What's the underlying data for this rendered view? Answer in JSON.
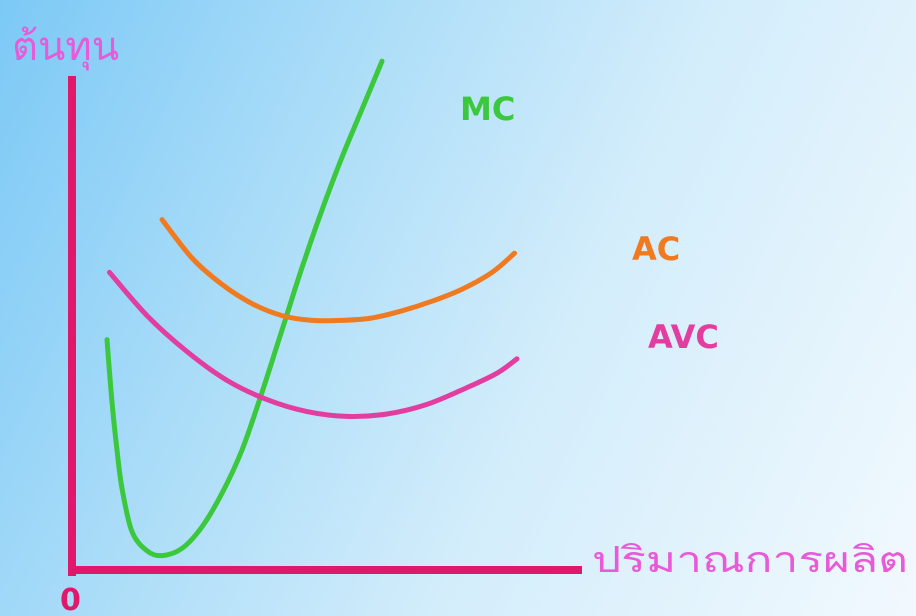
{
  "chart_data": {
    "type": "line",
    "title": "",
    "ylabel": "ต้นทุน",
    "xlabel": "ปริมาณการผลิต",
    "origin_label": "0",
    "xlim": [
      0,
      10
    ],
    "ylim": [
      0,
      10
    ],
    "grid": false,
    "legend": "none",
    "series": [
      {
        "name": "MC",
        "color": "#3cc83c",
        "x": [
          0.7,
          0.8,
          0.9,
          1.0,
          1.2,
          1.5,
          1.8,
          2.2,
          2.6,
          3.0,
          3.4,
          3.8,
          4.2,
          4.6,
          5.0,
          5.4,
          5.8,
          6.2
        ],
        "y": [
          4.8,
          3.5,
          2.5,
          1.7,
          0.8,
          0.4,
          0.3,
          0.45,
          0.9,
          1.6,
          2.5,
          3.7,
          5.0,
          6.3,
          7.5,
          8.6,
          9.6,
          10.6
        ]
      },
      {
        "name": "AC",
        "color": "#f07a20",
        "x": [
          1.8,
          2.4,
          3.0,
          3.6,
          4.2,
          4.8,
          5.4,
          6.0,
          6.6,
          7.2,
          7.8,
          8.4,
          8.85
        ],
        "y": [
          7.3,
          6.5,
          5.95,
          5.55,
          5.3,
          5.2,
          5.2,
          5.25,
          5.4,
          5.6,
          5.85,
          6.2,
          6.6
        ]
      },
      {
        "name": "AVC",
        "color": "#e23ea0",
        "x": [
          0.75,
          1.5,
          2.3,
          3.1,
          3.9,
          4.7,
          5.5,
          6.3,
          7.1,
          7.9,
          8.5,
          8.9
        ],
        "y": [
          6.2,
          5.3,
          4.55,
          3.95,
          3.55,
          3.3,
          3.2,
          3.25,
          3.45,
          3.8,
          4.1,
          4.4
        ]
      }
    ],
    "axis_color": "#e0186c",
    "label_color": "#e85ad8"
  }
}
